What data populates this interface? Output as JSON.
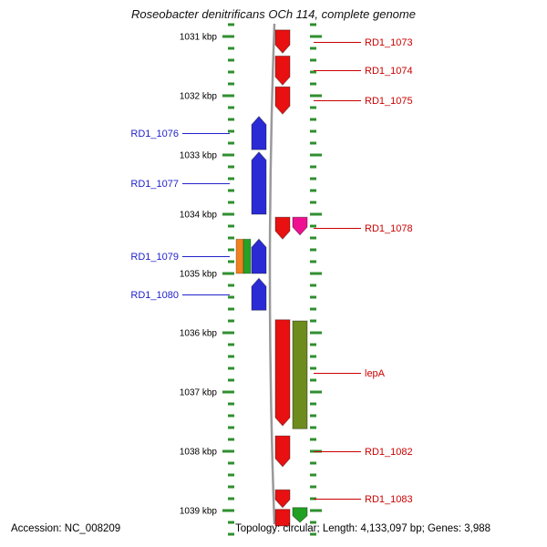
{
  "title": "Roseobacter denitrificans OCh 114, complete genome",
  "footer": {
    "accession": "Accession: NC_008209",
    "topology": "Topology: circular; Length: 4,133,097 bp; Genes: 3,988"
  },
  "ruler": {
    "unit": "kbp",
    "range_kbp": [
      1030.8,
      1039.4
    ],
    "minor_step_kbp": 0.2,
    "tick_color": "#2f8f2f",
    "marks": [
      {
        "kbp": 1031,
        "label": "1031 kbp"
      },
      {
        "kbp": 1032,
        "label": "1032 kbp"
      },
      {
        "kbp": 1033,
        "label": "1033 kbp"
      },
      {
        "kbp": 1034,
        "label": "1034 kbp"
      },
      {
        "kbp": 1035,
        "label": "1035 kbp"
      },
      {
        "kbp": 1036,
        "label": "1036 kbp"
      },
      {
        "kbp": 1037,
        "label": "1037 kbp"
      },
      {
        "kbp": 1038,
        "label": "1038 kbp"
      },
      {
        "kbp": 1039,
        "label": "1039 kbp"
      }
    ]
  },
  "colors": {
    "forward_gene": "#e81010",
    "reverse_gene": "#2b2bd5",
    "label_red": "#cc0000",
    "label_blue": "#2222cc",
    "backbone": "#999999",
    "magenta_feature": "#ee1090",
    "olive_feature": "#6e8b1e",
    "green_feature": "#21a021",
    "stripe_orange": "#f08020",
    "stripe_green": "#28a028"
  },
  "genes": [
    {
      "label": "RD1_1073",
      "strand": "forward",
      "lane": "R1",
      "kind": "arrow",
      "fill": "forward_gene",
      "label_color": "label_red",
      "start_kbp": 1030.89,
      "end_kbp": 1031.28
    },
    {
      "label": "RD1_1074",
      "strand": "forward",
      "lane": "R1",
      "kind": "arrow",
      "fill": "forward_gene",
      "label_color": "label_red",
      "start_kbp": 1031.33,
      "end_kbp": 1031.82
    },
    {
      "label": "RD1_1075",
      "strand": "forward",
      "lane": "R1",
      "kind": "arrow",
      "fill": "forward_gene",
      "label_color": "label_red",
      "start_kbp": 1031.85,
      "end_kbp": 1032.31
    },
    {
      "label": "RD1_1076",
      "strand": "reverse",
      "lane": "L1",
      "kind": "arrow",
      "fill": "reverse_gene",
      "label_color": "label_blue",
      "start_kbp": 1032.35,
      "end_kbp": 1032.91
    },
    {
      "label": "RD1_1077",
      "strand": "reverse",
      "lane": "L1",
      "kind": "arrow",
      "fill": "reverse_gene",
      "label_color": "label_blue",
      "start_kbp": 1032.95,
      "end_kbp": 1034.0
    },
    {
      "label": "RD1_1078",
      "strand": "forward",
      "lane": "R1",
      "kind": "arrow",
      "fill": "forward_gene",
      "label_color": "label_red",
      "start_kbp": 1034.05,
      "end_kbp": 1034.42
    },
    {
      "label": null,
      "strand": "forward",
      "lane": "R2",
      "kind": "arrow",
      "fill": "magenta_feature",
      "start_kbp": 1034.05,
      "end_kbp": 1034.35
    },
    {
      "label": "RD1_1079",
      "strand": "reverse",
      "lane": "L1",
      "kind": "arrow",
      "fill": "reverse_gene",
      "label_color": "label_blue",
      "start_kbp": 1034.42,
      "end_kbp": 1035.0
    },
    {
      "label": null,
      "strand": "reverse",
      "lane": "L2",
      "kind": "striped-block",
      "stripes": [
        "stripe_orange",
        "stripe_green"
      ],
      "start_kbp": 1034.42,
      "end_kbp": 1035.0
    },
    {
      "label": "RD1_1080",
      "strand": "reverse",
      "lane": "L1",
      "kind": "arrow",
      "fill": "reverse_gene",
      "label_color": "label_blue",
      "start_kbp": 1035.08,
      "end_kbp": 1035.62
    },
    {
      "label": "lepA",
      "strand": "forward",
      "lane": "R1",
      "kind": "arrow",
      "fill": "forward_gene",
      "label_color": "label_red",
      "start_kbp": 1035.78,
      "end_kbp": 1037.57
    },
    {
      "label": null,
      "strand": "forward",
      "lane": "R2",
      "kind": "block",
      "fill": "olive_feature",
      "start_kbp": 1035.8,
      "end_kbp": 1037.62
    },
    {
      "label": "RD1_1082",
      "strand": "forward",
      "lane": "R1",
      "kind": "arrow",
      "fill": "forward_gene",
      "label_color": "label_red",
      "start_kbp": 1037.74,
      "end_kbp": 1038.26
    },
    {
      "label": "RD1_1083",
      "strand": "forward",
      "lane": "R1",
      "kind": "arrow",
      "fill": "forward_gene",
      "label_color": "label_red",
      "start_kbp": 1038.65,
      "end_kbp": 1038.95
    },
    {
      "label": null,
      "strand": "forward",
      "lane": "R2",
      "kind": "arrow",
      "fill": "green_feature",
      "start_kbp": 1038.95,
      "end_kbp": 1039.2
    },
    {
      "label": null,
      "strand": "forward",
      "lane": "R1",
      "kind": "block",
      "fill": "forward_gene",
      "start_kbp": 1038.98,
      "end_kbp": 1039.26
    }
  ]
}
